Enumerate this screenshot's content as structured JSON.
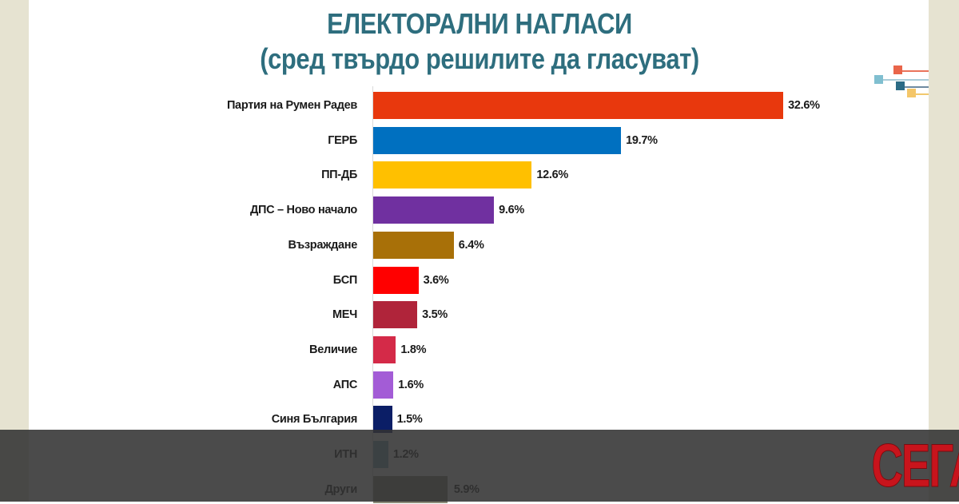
{
  "header": {
    "title_line1": "ЕЛЕКТОРАЛНИ НАГЛАСИ",
    "title_line2": "(сред твърдо решилите да гласуват)"
  },
  "branding": {
    "logo_text": "СЕГА",
    "logo_color": "#c8141c"
  },
  "colors": {
    "title": "#2e6e7e",
    "side_strip": "#e6e3d1",
    "overlay": "#323232"
  },
  "chart_data": {
    "type": "bar",
    "orientation": "horizontal",
    "title": "ЕЛЕКТОРАЛНИ НАГЛАСИ (сред твърдо решилите да гласуват)",
    "xlabel": "",
    "ylabel": "",
    "unit": "%",
    "grid": false,
    "legend": null,
    "categories": [
      "Партия на Румен Радев",
      "ГЕРБ",
      "ПП-ДБ",
      "ДПС – Ново начало",
      "Възраждане",
      "БСП",
      "МЕЧ",
      "Величие",
      "АПС",
      "Синя България",
      "ИТН",
      "Други"
    ],
    "values": [
      32.6,
      19.7,
      12.6,
      9.6,
      6.4,
      3.6,
      3.5,
      1.8,
      1.6,
      1.5,
      1.2,
      5.9
    ],
    "labels": [
      "32.6%",
      "19.7%",
      "12.6%",
      "9.6%",
      "6.4%",
      "3.6%",
      "3.5%",
      "1.8%",
      "1.6%",
      "1.5%",
      "1.2%",
      "5.9%"
    ],
    "bar_colors": [
      "#e8380d",
      "#0070c0",
      "#ffc000",
      "#7030a0",
      "#a87008",
      "#ff0000",
      "#b0243a",
      "#d42a48",
      "#a35cd6",
      "#0b1e66",
      "#7fa8b8",
      "#8c8c7a"
    ],
    "xlim": [
      0,
      35
    ]
  }
}
